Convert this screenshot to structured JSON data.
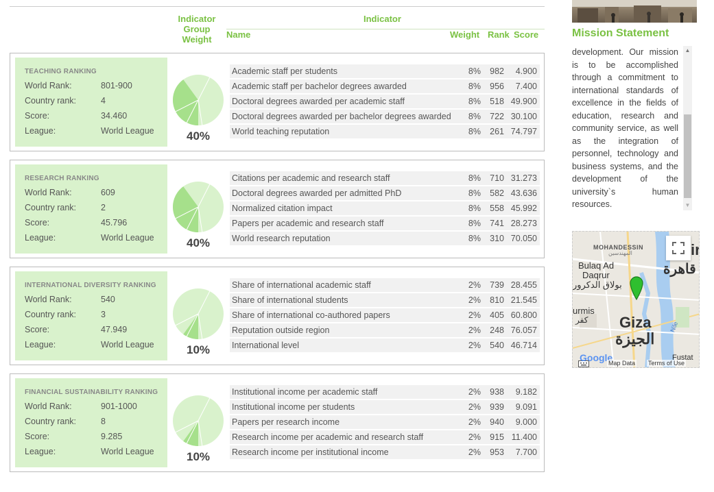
{
  "header": {
    "indicator_group_weight": "Indicator Group Weight",
    "indicator": "Indicator",
    "name": "Name",
    "weight": "Weight",
    "rank": "Rank",
    "score": "Score"
  },
  "labels": {
    "world_rank": "World Rank:",
    "country_rank": "Country rank:",
    "score": "Score:",
    "league": "League:"
  },
  "groups": [
    {
      "title": "TEACHING RANKING",
      "world_rank": "801-900",
      "country_rank": "4",
      "score": "34.460",
      "league": "World League",
      "weight_pct": "40%",
      "weight_value": 40,
      "indicators": [
        {
          "name": "Academic staff per students",
          "weight": "8%",
          "rank": "982",
          "score": "4.900"
        },
        {
          "name": "Academic staff per bachelor degrees awarded",
          "weight": "8%",
          "rank": "956",
          "score": "7.400"
        },
        {
          "name": "Doctoral degrees awarded per academic staff",
          "weight": "8%",
          "rank": "518",
          "score": "49.900"
        },
        {
          "name": "Doctoral degrees awarded per bachelor degrees awarded",
          "weight": "8%",
          "rank": "722",
          "score": "30.100"
        },
        {
          "name": "World teaching reputation",
          "weight": "8%",
          "rank": "261",
          "score": "74.797"
        }
      ]
    },
    {
      "title": "RESEARCH RANKING",
      "world_rank": "609",
      "country_rank": "2",
      "score": "45.796",
      "league": "World League",
      "weight_pct": "40%",
      "weight_value": 40,
      "indicators": [
        {
          "name": "Citations per academic and research staff",
          "weight": "8%",
          "rank": "710",
          "score": "31.273"
        },
        {
          "name": "Doctoral degrees awarded per admitted PhD",
          "weight": "8%",
          "rank": "582",
          "score": "43.636"
        },
        {
          "name": "Normalized citation impact",
          "weight": "8%",
          "rank": "558",
          "score": "45.992"
        },
        {
          "name": "Papers per academic and research staff",
          "weight": "8%",
          "rank": "741",
          "score": "28.273"
        },
        {
          "name": "World research reputation",
          "weight": "8%",
          "rank": "310",
          "score": "70.050"
        }
      ]
    },
    {
      "title": "INTERNATIONAL DIVERSITY RANKING",
      "world_rank": "540",
      "country_rank": "3",
      "score": "47.949",
      "league": "World League",
      "weight_pct": "10%",
      "weight_value": 10,
      "indicators": [
        {
          "name": "Share of international academic staff",
          "weight": "2%",
          "rank": "739",
          "score": "28.455"
        },
        {
          "name": "Share of international students",
          "weight": "2%",
          "rank": "810",
          "score": "21.545"
        },
        {
          "name": "Share of international co-authored papers",
          "weight": "2%",
          "rank": "405",
          "score": "60.800"
        },
        {
          "name": "Reputation outside region",
          "weight": "2%",
          "rank": "248",
          "score": "76.057"
        },
        {
          "name": "International level",
          "weight": "2%",
          "rank": "540",
          "score": "46.714"
        }
      ]
    },
    {
      "title": "FINANCIAL SUSTAINABILITY RANKING",
      "world_rank": "901-1000",
      "country_rank": "8",
      "score": "9.285",
      "league": "World League",
      "weight_pct": "10%",
      "weight_value": 10,
      "indicators": [
        {
          "name": "Institutional income per academic staff",
          "weight": "2%",
          "rank": "938",
          "score": "9.182"
        },
        {
          "name": "Institutional income per students",
          "weight": "2%",
          "rank": "939",
          "score": "9.091"
        },
        {
          "name": "Papers per research income",
          "weight": "2%",
          "rank": "940",
          "score": "9.000"
        },
        {
          "name": "Research income per academic and research staff",
          "weight": "2%",
          "rank": "915",
          "score": "11.400"
        },
        {
          "name": "Research income per institutional income",
          "weight": "2%",
          "rank": "953",
          "score": "7.700"
        }
      ]
    }
  ],
  "sidebar": {
    "mission_title": "Mission Statement",
    "mission_text": "development. Our mission is to be accomplished through a commitment to international standards of excellence in the fields of education, research and community service, as well as the integration of personnel, technology and business systems, and the development of the university`s human resources."
  },
  "map": {
    "labels": {
      "mohandessin": "MOHANDESSIN",
      "mohandessin_ar": "المهندسين",
      "bulaq": "Bulaq Ad",
      "daqrur": "Daqrur",
      "bulaq_ar": "بولاق الدكرور",
      "cairo_partial": "ir",
      "cairo_ar_partial": "قاهرة",
      "urmis": "urmis",
      "kafr_ar": "كفر",
      "giza": "Giza",
      "giza_ar": "الجيزة",
      "nile": "Nile",
      "fustat": "Fustat",
      "google": "Google",
      "map_data": "Map Data",
      "terms": "Terms of Use"
    }
  },
  "colors": {
    "accent": "#7ac143",
    "card_bg": "#d9f2cc",
    "pie_light": "#d9f2cc",
    "pie_dark": "#a6e08b"
  }
}
